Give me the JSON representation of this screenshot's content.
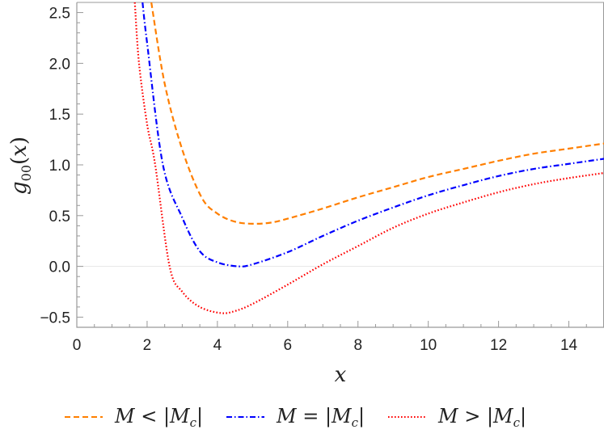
{
  "chart_data": {
    "type": "line",
    "title": "",
    "xlabel": "x",
    "ylabel": "g00(x)",
    "xlim": [
      0,
      15
    ],
    "ylim": [
      -0.6,
      2.6
    ],
    "xticks": [
      "0",
      "2",
      "4",
      "6",
      "8",
      "10",
      "12",
      "14"
    ],
    "yticks": [
      "-0.5",
      "0.0",
      "0.5",
      "1.0",
      "1.5",
      "2.0",
      "2.5"
    ],
    "grid": false,
    "legend_position": "bottom",
    "series": [
      {
        "name": "M < |Mc|",
        "color": "#ff7f00",
        "dash": "dashed",
        "x": [
          2.12,
          2.5,
          3,
          3.55,
          4,
          4.5,
          5,
          5.5,
          6,
          7,
          8,
          9,
          10,
          11,
          12,
          13,
          14,
          15
        ],
        "y": [
          2.6,
          1.8,
          1.15,
          0.68,
          0.52,
          0.44,
          0.42,
          0.43,
          0.47,
          0.57,
          0.68,
          0.78,
          0.88,
          0.96,
          1.04,
          1.11,
          1.16,
          1.21
        ]
      },
      {
        "name": "M = |Mc|",
        "color": "#0000ff",
        "dash": "dashdot",
        "x": [
          1.87,
          2.0,
          2.45,
          3,
          3.5,
          4,
          4.6,
          5,
          6,
          7,
          8,
          9,
          10,
          11,
          12,
          13,
          14,
          15
        ],
        "y": [
          2.6,
          2.2,
          1.0,
          0.48,
          0.15,
          0.04,
          0.0,
          0.02,
          0.14,
          0.3,
          0.45,
          0.58,
          0.7,
          0.8,
          0.89,
          0.96,
          1.01,
          1.06
        ]
      },
      {
        "name": "M > |Mc|",
        "color": "#ff0000",
        "dash": "dotted",
        "x": [
          1.65,
          1.77,
          2.0,
          2.23,
          2.64,
          3,
          3.5,
          4.1,
          4.5,
          5,
          6,
          7,
          8,
          9,
          10,
          11,
          12,
          13,
          14,
          15
        ],
        "y": [
          2.6,
          2.0,
          1.4,
          1.0,
          0.0,
          -0.25,
          -0.4,
          -0.46,
          -0.44,
          -0.37,
          -0.18,
          0.02,
          0.2,
          0.38,
          0.52,
          0.63,
          0.73,
          0.81,
          0.87,
          0.92
        ]
      }
    ]
  }
}
